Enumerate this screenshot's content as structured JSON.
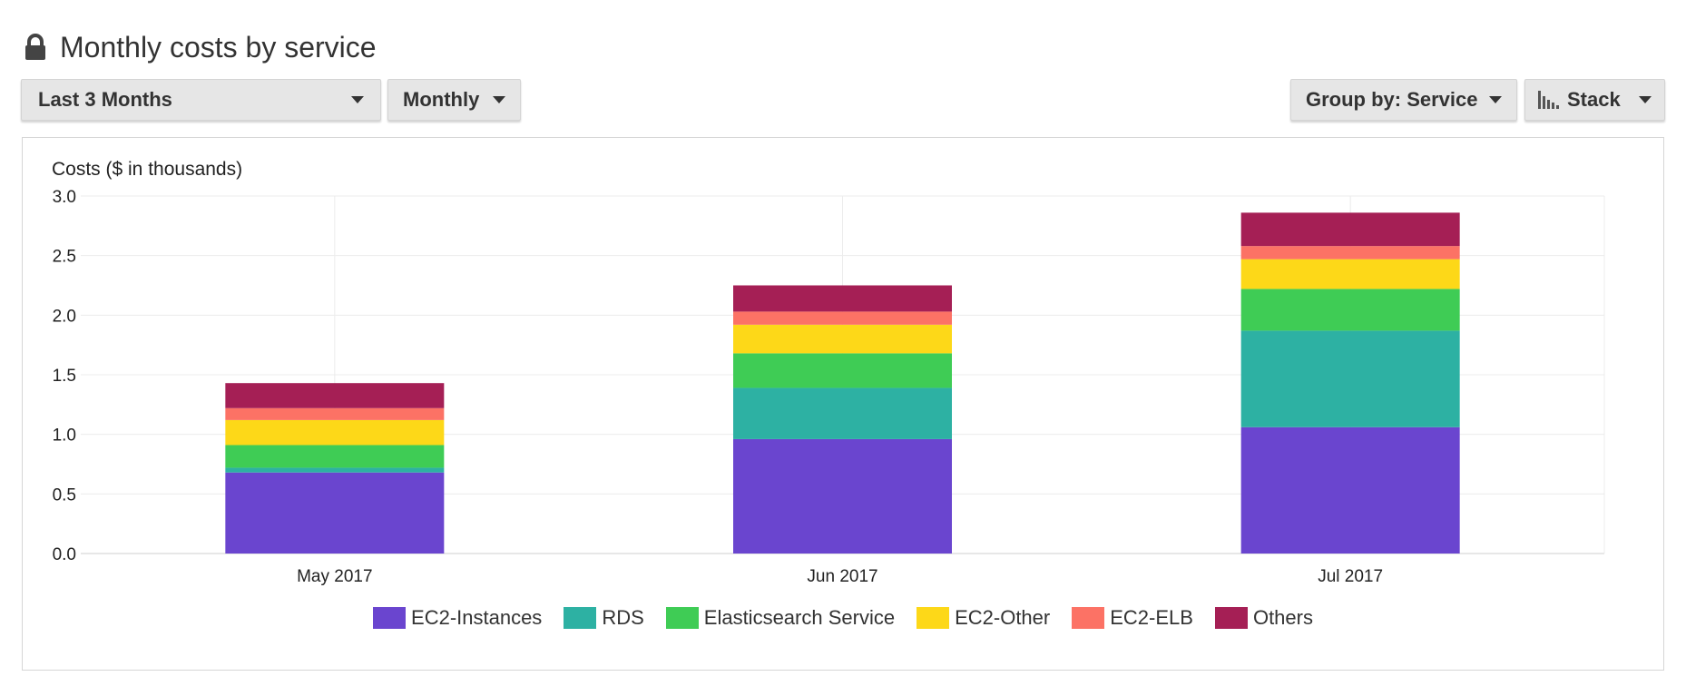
{
  "header": {
    "title": "Monthly costs by service",
    "lock_icon": "lock-icon"
  },
  "toolbar": {
    "range_label": "Last 3 Months",
    "granularity_label": "Monthly",
    "group_label": "Group by: Service",
    "stack_label": "Stack",
    "stack_icon": "bar-chart-icon",
    "dropdown_icon": "caret-down-icon"
  },
  "chart_data": {
    "type": "bar",
    "stacked": true,
    "ylabel": "Costs ($ in thousands)",
    "xlabel": "",
    "ylim": [
      0,
      3.0
    ],
    "yticks": [
      "0.0",
      "0.5",
      "1.0",
      "1.5",
      "2.0",
      "2.5",
      "3.0"
    ],
    "categories": [
      "May 2017",
      "Jun 2017",
      "Jul 2017"
    ],
    "series": [
      {
        "name": "EC2-Instances",
        "color": "#6a45cf",
        "values": [
          0.68,
          0.96,
          1.06
        ]
      },
      {
        "name": "RDS",
        "color": "#2db1a3",
        "values": [
          0.04,
          0.43,
          0.81
        ]
      },
      {
        "name": "Elasticsearch Service",
        "color": "#3fcc55",
        "values": [
          0.19,
          0.29,
          0.35
        ]
      },
      {
        "name": "EC2-Other",
        "color": "#fdd818",
        "values": [
          0.21,
          0.24,
          0.25
        ]
      },
      {
        "name": "EC2-ELB",
        "color": "#fc7265",
        "values": [
          0.1,
          0.11,
          0.11
        ]
      },
      {
        "name": "Others",
        "color": "#a51f55",
        "values": [
          0.21,
          0.22,
          0.28
        ]
      }
    ],
    "grid": true,
    "legend_position": "bottom"
  }
}
